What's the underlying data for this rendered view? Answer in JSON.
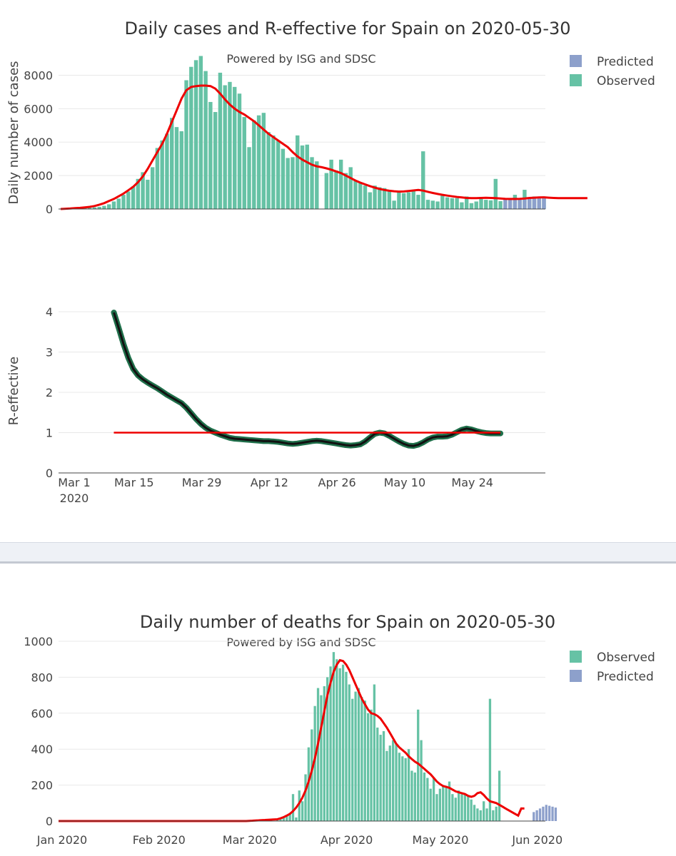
{
  "chart_data": [
    {
      "type": "bar",
      "title": "Daily cases and R-effective for Spain on 2020-05-30",
      "subtitle": "Powered by ISG and SDSC",
      "ylabel": "Daily number of cases",
      "ylim": [
        0,
        9000
      ],
      "yticks": [
        0,
        2000,
        4000,
        6000,
        8000
      ],
      "x_start_day": 0,
      "legend": [
        {
          "name": "Predicted",
          "color": "#8da0cb"
        },
        {
          "name": "Observed",
          "color": "#66c2a5"
        }
      ],
      "series": [
        {
          "name": "Observed",
          "color": "#66c2a5",
          "start_day": 0,
          "values": [
            0,
            5,
            8,
            15,
            25,
            45,
            70,
            100,
            130,
            190,
            280,
            450,
            620,
            850,
            1050,
            1350,
            1800,
            2200,
            1750,
            2500,
            3650,
            4100,
            4500,
            5450,
            4900,
            4650,
            7700,
            8500,
            8900,
            9150,
            8250,
            6400,
            5800,
            8150,
            7400,
            7600,
            7300,
            6900,
            5500,
            3700,
            5300,
            5600,
            5750,
            4600,
            4400,
            4100,
            3600,
            3050,
            3100,
            4400,
            3800,
            3850,
            3100,
            2850,
            0,
            2150,
            2950,
            2300,
            2950,
            2150,
            2500,
            1700,
            1600,
            1400,
            1000,
            1400,
            1300,
            1250,
            1100,
            500,
            1050,
            950,
            1000,
            1150,
            850,
            3450,
            550,
            500,
            450,
            800,
            700,
            650,
            650,
            400,
            750,
            350,
            450,
            600,
            550,
            520,
            1800,
            470,
            100,
            0,
            850,
            650,
            1150,
            700,
            750,
            700,
            750
          ]
        },
        {
          "name": "Predicted",
          "color": "#8da0cb",
          "start_day": 92,
          "values": [
            650,
            650,
            650,
            650,
            650,
            650,
            650,
            650,
            650
          ]
        },
        {
          "name": "Smoothed",
          "color": "#ee0000",
          "start_day": 0,
          "values": [
            0,
            15,
            30,
            50,
            70,
            100,
            130,
            180,
            260,
            350,
            480,
            600,
            760,
            920,
            1120,
            1330,
            1600,
            1950,
            2400,
            2900,
            3400,
            3900,
            4500,
            5200,
            5900,
            6600,
            7100,
            7300,
            7350,
            7380,
            7380,
            7350,
            7200,
            6900,
            6550,
            6250,
            6000,
            5800,
            5650,
            5450,
            5250,
            5000,
            4750,
            4500,
            4300,
            4100,
            3900,
            3700,
            3400,
            3150,
            2950,
            2800,
            2650,
            2550,
            2500,
            2430,
            2350,
            2250,
            2150,
            2000,
            1850,
            1700,
            1580,
            1470,
            1370,
            1280,
            1200,
            1140,
            1090,
            1060,
            1040,
            1050,
            1080,
            1110,
            1140,
            1100,
            1030,
            960,
            900,
            850,
            800,
            760,
            720,
            690,
            660,
            650,
            650,
            660,
            670,
            660,
            650,
            630,
            610,
            600,
            600,
            610,
            630,
            660,
            680,
            690,
            700,
            680,
            660,
            650,
            650,
            650,
            650,
            650,
            650,
            650
          ]
        }
      ]
    },
    {
      "type": "line",
      "ylabel": "R-effective",
      "ylim": [
        0,
        4.3
      ],
      "yticks": [
        0,
        1,
        2,
        3,
        4
      ],
      "xticks": [
        "Mar 1",
        "Mar 15",
        "Mar 29",
        "Apr 12",
        "Apr 26",
        "May 10",
        "May 24"
      ],
      "xtick_days": [
        0,
        14,
        28,
        42,
        56,
        70,
        84
      ],
      "xtick_year": "2020",
      "x_start_day": 0,
      "series": [
        {
          "name": "R-effective",
          "color": "#111111",
          "start_day": 11,
          "values": [
            3.98,
            3.6,
            3.2,
            2.85,
            2.58,
            2.42,
            2.32,
            2.24,
            2.17,
            2.1,
            2.02,
            1.94,
            1.87,
            1.8,
            1.73,
            1.62,
            1.48,
            1.34,
            1.22,
            1.12,
            1.05,
            1.0,
            0.95,
            0.91,
            0.87,
            0.85,
            0.84,
            0.83,
            0.82,
            0.81,
            0.8,
            0.79,
            0.79,
            0.78,
            0.77,
            0.75,
            0.73,
            0.72,
            0.73,
            0.75,
            0.77,
            0.79,
            0.8,
            0.79,
            0.77,
            0.75,
            0.73,
            0.71,
            0.69,
            0.68,
            0.69,
            0.71,
            0.78,
            0.88,
            0.97,
            1.0,
            0.98,
            0.92,
            0.85,
            0.78,
            0.72,
            0.68,
            0.67,
            0.7,
            0.76,
            0.83,
            0.88,
            0.9,
            0.9,
            0.91,
            0.95,
            1.01,
            1.07,
            1.1,
            1.08,
            1.04,
            1.01,
            0.99,
            0.98,
            0.98,
            0.98
          ]
        },
        {
          "name": "Reference",
          "color": "#ee0000",
          "start_day": 11,
          "values": [
            1,
            1
          ]
        }
      ]
    },
    {
      "type": "bar",
      "title": "Daily number of deaths for Spain on 2020-05-30",
      "subtitle": "Powered by ISG and SDSC",
      "ylim": [
        0,
        1000
      ],
      "yticks": [
        0,
        200,
        400,
        600,
        800,
        1000
      ],
      "xticks": [
        "Jan 2020",
        "Feb 2020",
        "Mar 2020",
        "Apr 2020",
        "May 2020",
        "Jun 2020"
      ],
      "xtick_days": [
        0,
        31,
        60,
        91,
        121,
        152
      ],
      "legend": [
        {
          "name": "Observed",
          "color": "#66c2a5"
        },
        {
          "name": "Predicted",
          "color": "#8da0cb"
        }
      ],
      "series": [
        {
          "name": "Observed",
          "color": "#66c2a5",
          "start_day": 69,
          "values": [
            0,
            5,
            10,
            20,
            30,
            40,
            150,
            20,
            170,
            110,
            260,
            410,
            510,
            640,
            740,
            700,
            750,
            800,
            860,
            940,
            900,
            850,
            870,
            830,
            760,
            680,
            720,
            740,
            690,
            670,
            600,
            620,
            760,
            520,
            480,
            500,
            390,
            420,
            450,
            430,
            380,
            360,
            350,
            400,
            280,
            270,
            620,
            450,
            270,
            240,
            180,
            240,
            150,
            180,
            200,
            190,
            220,
            150,
            130,
            170,
            150,
            150,
            140,
            120,
            90,
            70,
            60,
            110,
            70,
            680,
            60,
            80,
            280
          ]
        },
        {
          "name": "Predicted",
          "color": "#8da0cb",
          "start_day": 152,
          "values": [
            50,
            60,
            70,
            80,
            90,
            85,
            80,
            75
          ]
        },
        {
          "name": "Smoothed",
          "color": "#ee0000",
          "start_day": 0,
          "values": [
            0,
            0,
            0,
            0,
            0,
            0,
            0,
            0,
            0,
            0,
            0,
            0,
            0,
            0,
            0,
            0,
            0,
            0,
            0,
            0,
            0,
            0,
            0,
            0,
            0,
            0,
            0,
            0,
            0,
            0,
            0,
            0,
            0,
            0,
            0,
            0,
            0,
            0,
            0,
            0,
            0,
            0,
            0,
            0,
            0,
            0,
            0,
            0,
            0,
            0,
            0,
            0,
            0,
            0,
            0,
            0,
            0,
            0,
            0,
            0,
            0,
            1,
            2,
            3,
            4,
            5,
            6,
            7,
            8,
            9,
            10,
            15,
            22,
            30,
            40,
            55,
            75,
            100,
            130,
            170,
            220,
            280,
            350,
            430,
            520,
            610,
            700,
            770,
            830,
            870,
            895,
            890,
            870,
            840,
            800,
            760,
            720,
            680,
            650,
            620,
            600,
            595,
            585,
            570,
            545,
            520,
            490,
            460,
            430,
            410,
            395,
            380,
            360,
            345,
            330,
            320,
            305,
            290,
            275,
            260,
            240,
            220,
            205,
            195,
            190,
            185,
            175,
            165,
            160,
            155,
            150,
            140,
            135,
            140,
            155,
            160,
            145,
            125,
            110,
            105,
            100,
            90,
            80,
            70,
            60,
            50,
            40,
            30,
            70,
            70
          ]
        }
      ]
    }
  ]
}
